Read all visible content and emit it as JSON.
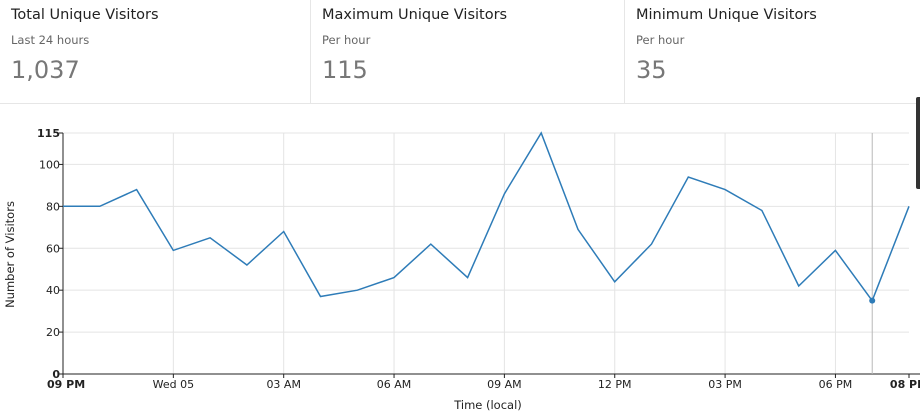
{
  "cards": [
    {
      "title": "Total Unique Visitors",
      "subtitle": "Last 24 hours",
      "value": "1,037"
    },
    {
      "title": "Maximum Unique Visitors",
      "subtitle": "Per hour",
      "value": "115"
    },
    {
      "title": "Minimum Unique Visitors",
      "subtitle": "Per hour",
      "value": "35"
    }
  ],
  "chart_data": {
    "type": "line",
    "title": "",
    "xlabel": "Time (local)",
    "ylabel": "Number of Visitors",
    "ylim": [
      0,
      115
    ],
    "y_ticks": [
      0,
      20,
      40,
      60,
      80,
      100,
      115
    ],
    "x_tick_labels": [
      {
        "hour_index": 0,
        "label": "09 PM",
        "bold": true
      },
      {
        "hour_index": 3,
        "label": "Wed 05",
        "bold": false
      },
      {
        "hour_index": 6,
        "label": "03 AM",
        "bold": false
      },
      {
        "hour_index": 9,
        "label": "06 AM",
        "bold": false
      },
      {
        "hour_index": 12,
        "label": "09 AM",
        "bold": false
      },
      {
        "hour_index": 15,
        "label": "12 PM",
        "bold": false
      },
      {
        "hour_index": 18,
        "label": "03 PM",
        "bold": false
      },
      {
        "hour_index": 21,
        "label": "06 PM",
        "bold": false
      },
      {
        "hour_index": 23,
        "label": "08 PM",
        "bold": true
      }
    ],
    "grid": true,
    "series": [
      {
        "color": "#2e7cb8",
        "values": [
          80,
          80,
          88,
          59,
          65,
          52,
          68,
          37,
          40,
          46,
          62,
          46,
          86,
          115,
          69,
          44,
          62,
          94,
          88,
          78,
          42,
          59,
          35,
          80
        ]
      }
    ],
    "highlight": {
      "hour_index": 22,
      "value": 35
    }
  }
}
